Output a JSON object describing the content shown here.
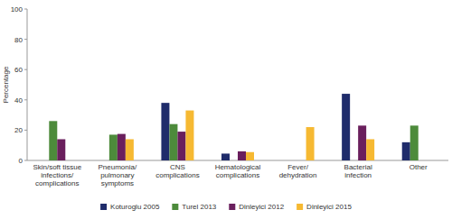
{
  "chart_data": {
    "type": "bar",
    "y_label": "Percentage",
    "categories": [
      "Skin/soft tissue infections/complications",
      "Pneumonia/pulmonary symptoms",
      "CNS complications",
      "Hematological complications",
      "Fever/dehydration",
      "Bacterial infection",
      "Other"
    ],
    "series": [
      {
        "name": "Koturoglu 2005",
        "color": "#1f2c6b",
        "values": [
          null,
          null,
          38,
          4.5,
          null,
          44,
          12
        ]
      },
      {
        "name": "Turel 2013",
        "color": "#4d8b3b",
        "values": [
          26,
          17,
          24,
          null,
          null,
          null,
          23
        ]
      },
      {
        "name": "Dinleyici 2012",
        "color": "#6a1f5d",
        "values": [
          14,
          17.5,
          19,
          6,
          null,
          23,
          null
        ]
      },
      {
        "name": "Dinleyici 2015",
        "color": "#f6b932",
        "values": [
          null,
          14,
          33,
          5.5,
          22,
          14,
          null
        ]
      }
    ],
    "ylim": [
      0,
      100
    ],
    "yticks": [
      0,
      20,
      40,
      60,
      80,
      100
    ],
    "grid": false,
    "legend": "bottom"
  }
}
